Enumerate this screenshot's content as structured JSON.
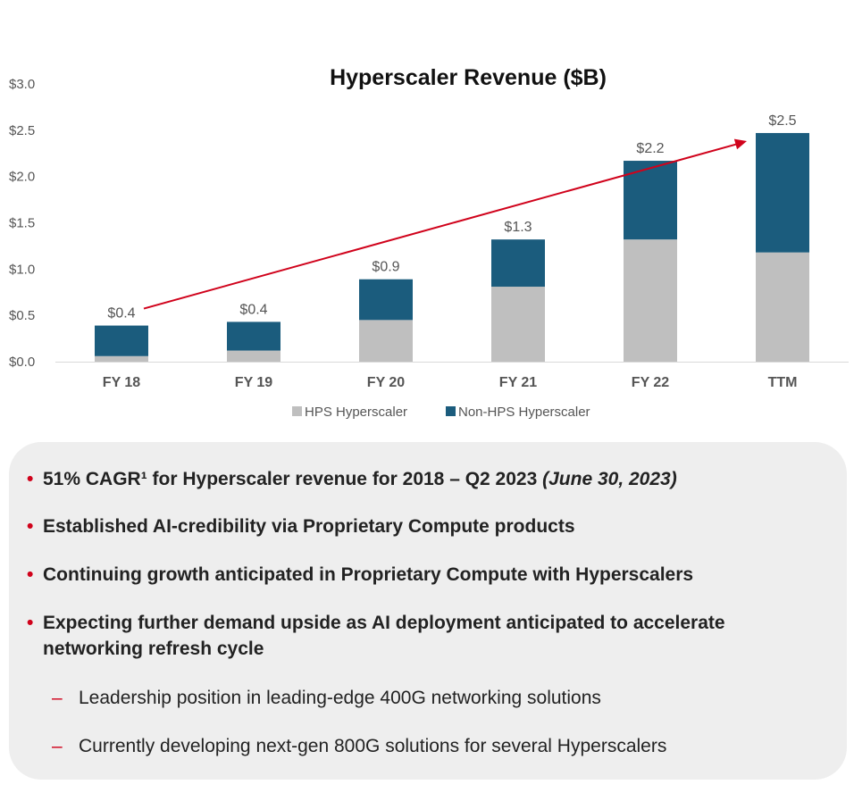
{
  "chart_data": {
    "type": "bar",
    "stacked": true,
    "title": "Hyperscaler Revenue ($B)",
    "categories": [
      "FY 18",
      "FY 19",
      "FY 20",
      "FY 21",
      "FY 22",
      "TTM"
    ],
    "series": [
      {
        "name": "HPS Hyperscaler",
        "color": "#bfbfbf",
        "values": [
          0.06,
          0.12,
          0.45,
          0.81,
          1.32,
          1.18
        ]
      },
      {
        "name": "Non-HPS Hyperscaler",
        "color": "#1b5c7d",
        "values": [
          0.33,
          0.31,
          0.44,
          0.51,
          0.85,
          1.29
        ]
      }
    ],
    "total_labels": [
      "$0.4",
      "$0.4",
      "$0.9",
      "$1.3",
      "$2.2",
      "$2.5"
    ],
    "y_tick_labels": [
      "$0.0",
      "$0.5",
      "$1.0",
      "$1.5",
      "$2.0",
      "$2.5",
      "$3.0"
    ],
    "y_ticks": [
      0,
      0.5,
      1.0,
      1.5,
      2.0,
      2.5,
      3.0
    ],
    "ylim": [
      0,
      3.0
    ],
    "legend_position": "bottom",
    "trend_arrow": {
      "from_category": "FY 18",
      "to_category": "TTM",
      "color": "#d0021b"
    }
  },
  "highlights": [
    {
      "text": "51% CAGR¹ for Hyperscaler revenue for 2018 – Q2 2023",
      "italic": "(June 30, 2023)"
    },
    {
      "text": "Established AI-credibility via Proprietary Compute products"
    },
    {
      "text": "Continuing growth anticipated in Proprietary Compute with Hyperscalers"
    },
    {
      "text": "Expecting further demand upside as AI deployment anticipated to accelerate networking refresh cycle"
    }
  ],
  "sub_points": [
    "Leadership position in leading-edge 400G networking solutions",
    "Currently developing next-gen 800G solutions for several Hyperscalers"
  ],
  "bullet_symbol": "•",
  "dash_symbol": "–"
}
